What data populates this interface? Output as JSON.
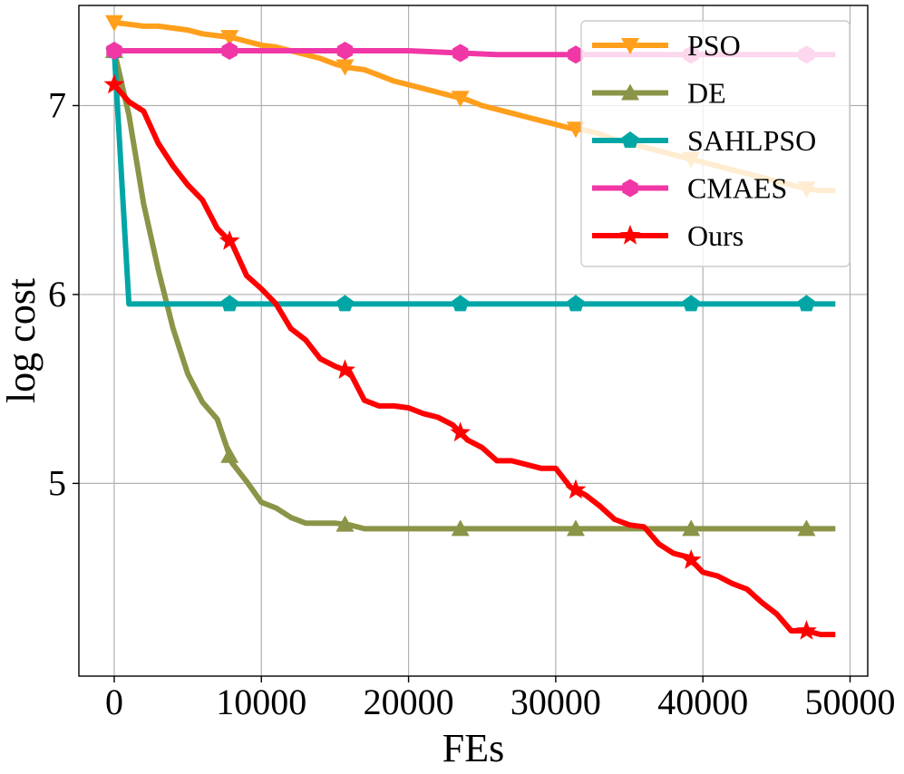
{
  "chart_data": {
    "type": "line",
    "title": "",
    "xlabel": "FEs",
    "ylabel": "log cost",
    "xlim": [
      -2400,
      51200
    ],
    "ylim": [
      3.98,
      7.53
    ],
    "xticks": [
      0,
      10000,
      20000,
      30000,
      40000,
      50000
    ],
    "xtick_labels": [
      "0",
      "10000",
      "20000",
      "30000",
      "40000",
      "50000"
    ],
    "yticks": [
      5,
      6,
      7
    ],
    "ytick_labels": [
      "5",
      "6",
      "7"
    ],
    "grid": true,
    "legend_position": "top-right",
    "series": [
      {
        "name": "PSO",
        "color": "#ff9f1c",
        "marker": "triangle-down",
        "x": [
          0,
          1000,
          2000,
          3000,
          4000,
          5000,
          6000,
          7000,
          8000,
          9000,
          10000,
          11000,
          12000,
          13000,
          14000,
          15000,
          16000,
          17000,
          18000,
          19000,
          20000,
          21000,
          22000,
          23000,
          24000,
          25000,
          26000,
          27000,
          28000,
          29000,
          30000,
          31000,
          32000,
          33000,
          34000,
          35000,
          36000,
          37000,
          38000,
          39000,
          40000,
          41000,
          42000,
          43000,
          44000,
          45000,
          46000,
          47000,
          48000,
          49000
        ],
        "y": [
          7.44,
          7.43,
          7.42,
          7.42,
          7.41,
          7.4,
          7.38,
          7.37,
          7.36,
          7.34,
          7.32,
          7.31,
          7.29,
          7.27,
          7.25,
          7.22,
          7.2,
          7.19,
          7.16,
          7.13,
          7.11,
          7.09,
          7.07,
          7.05,
          7.03,
          7.0,
          6.98,
          6.96,
          6.94,
          6.92,
          6.9,
          6.88,
          6.87,
          6.85,
          6.82,
          6.8,
          6.78,
          6.76,
          6.74,
          6.72,
          6.7,
          6.68,
          6.66,
          6.64,
          6.62,
          6.6,
          6.58,
          6.56,
          6.55,
          6.55
        ],
        "marker_x": [
          0,
          7840,
          15680,
          23520,
          31360,
          39200,
          47040
        ]
      },
      {
        "name": "DE",
        "color": "#8b9447",
        "marker": "triangle-up",
        "x": [
          0,
          1000,
          2000,
          3000,
          4000,
          5000,
          6000,
          7000,
          8000,
          9000,
          10000,
          11000,
          12000,
          13000,
          14000,
          15000,
          16000,
          17000,
          18000,
          20000,
          23000,
          26000,
          30000,
          35000,
          40000,
          45000,
          49000
        ],
        "y": [
          7.29,
          6.95,
          6.48,
          6.13,
          5.82,
          5.58,
          5.43,
          5.34,
          5.11,
          5.01,
          4.9,
          4.87,
          4.82,
          4.79,
          4.79,
          4.79,
          4.78,
          4.76,
          4.76,
          4.76,
          4.76,
          4.76,
          4.76,
          4.76,
          4.76,
          4.76,
          4.76
        ],
        "marker_x": [
          0,
          7840,
          15680,
          23520,
          31360,
          39200,
          47040
        ]
      },
      {
        "name": "SAHLPSO",
        "color": "#00a6a6",
        "marker": "pentagon",
        "x": [
          0,
          1000,
          2000,
          10000,
          20000,
          30000,
          40000,
          49000
        ],
        "y": [
          7.29,
          5.95,
          5.95,
          5.95,
          5.95,
          5.95,
          5.95,
          5.95
        ],
        "marker_x": [
          0,
          7840,
          15680,
          23520,
          31360,
          39200,
          47040
        ]
      },
      {
        "name": "CMAES",
        "color": "#f037a5",
        "marker": "hexagon",
        "x": [
          0,
          10000,
          20000,
          23000,
          26000,
          30000,
          40000,
          49000
        ],
        "y": [
          7.29,
          7.29,
          7.29,
          7.28,
          7.27,
          7.27,
          7.27,
          7.27
        ],
        "marker_x": [
          0,
          7840,
          15680,
          23520,
          31360,
          39200,
          47040
        ]
      },
      {
        "name": "Ours",
        "color": "#ff0000",
        "marker": "star",
        "x": [
          0,
          1000,
          2000,
          3000,
          4000,
          5000,
          6000,
          7000,
          8000,
          9000,
          10000,
          11000,
          12000,
          13000,
          14000,
          15000,
          16000,
          17000,
          18000,
          19000,
          20000,
          21000,
          22000,
          23000,
          24000,
          25000,
          26000,
          27000,
          28000,
          29000,
          30000,
          31000,
          32000,
          33000,
          34000,
          35000,
          36000,
          37000,
          38000,
          39000,
          40000,
          41000,
          42000,
          43000,
          44000,
          45000,
          46000,
          47000,
          48000,
          49000
        ],
        "y": [
          7.11,
          7.02,
          6.97,
          6.8,
          6.68,
          6.58,
          6.5,
          6.35,
          6.27,
          6.1,
          6.03,
          5.95,
          5.82,
          5.76,
          5.66,
          5.62,
          5.59,
          5.44,
          5.41,
          5.41,
          5.4,
          5.37,
          5.35,
          5.31,
          5.23,
          5.19,
          5.12,
          5.12,
          5.1,
          5.08,
          5.08,
          4.98,
          4.94,
          4.88,
          4.81,
          4.78,
          4.77,
          4.68,
          4.63,
          4.61,
          4.53,
          4.51,
          4.47,
          4.44,
          4.37,
          4.31,
          4.22,
          4.22,
          4.2,
          4.2
        ],
        "marker_x": [
          0,
          7840,
          15680,
          23520,
          31360,
          39200,
          47040
        ]
      }
    ]
  }
}
